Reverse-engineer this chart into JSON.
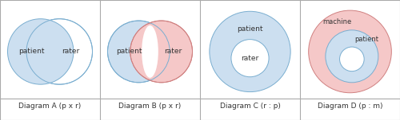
{
  "labels": [
    "Diagram A (p x r)",
    "Diagram B (p x r)",
    "Diagram C (r : p)",
    "Diagram D (p : m)"
  ],
  "blue_fill": "#ccdff0",
  "blue_edge": "#7aaed0",
  "pink_fill": "#f5c8c8",
  "pink_edge": "#d08080",
  "white_fill": "#ffffff",
  "bg_color": "#ffffff",
  "border_color": "#aaaaaa",
  "text_color": "#333333",
  "label_fontsize": 6.5,
  "diagram_text_fontsize": 6.5
}
